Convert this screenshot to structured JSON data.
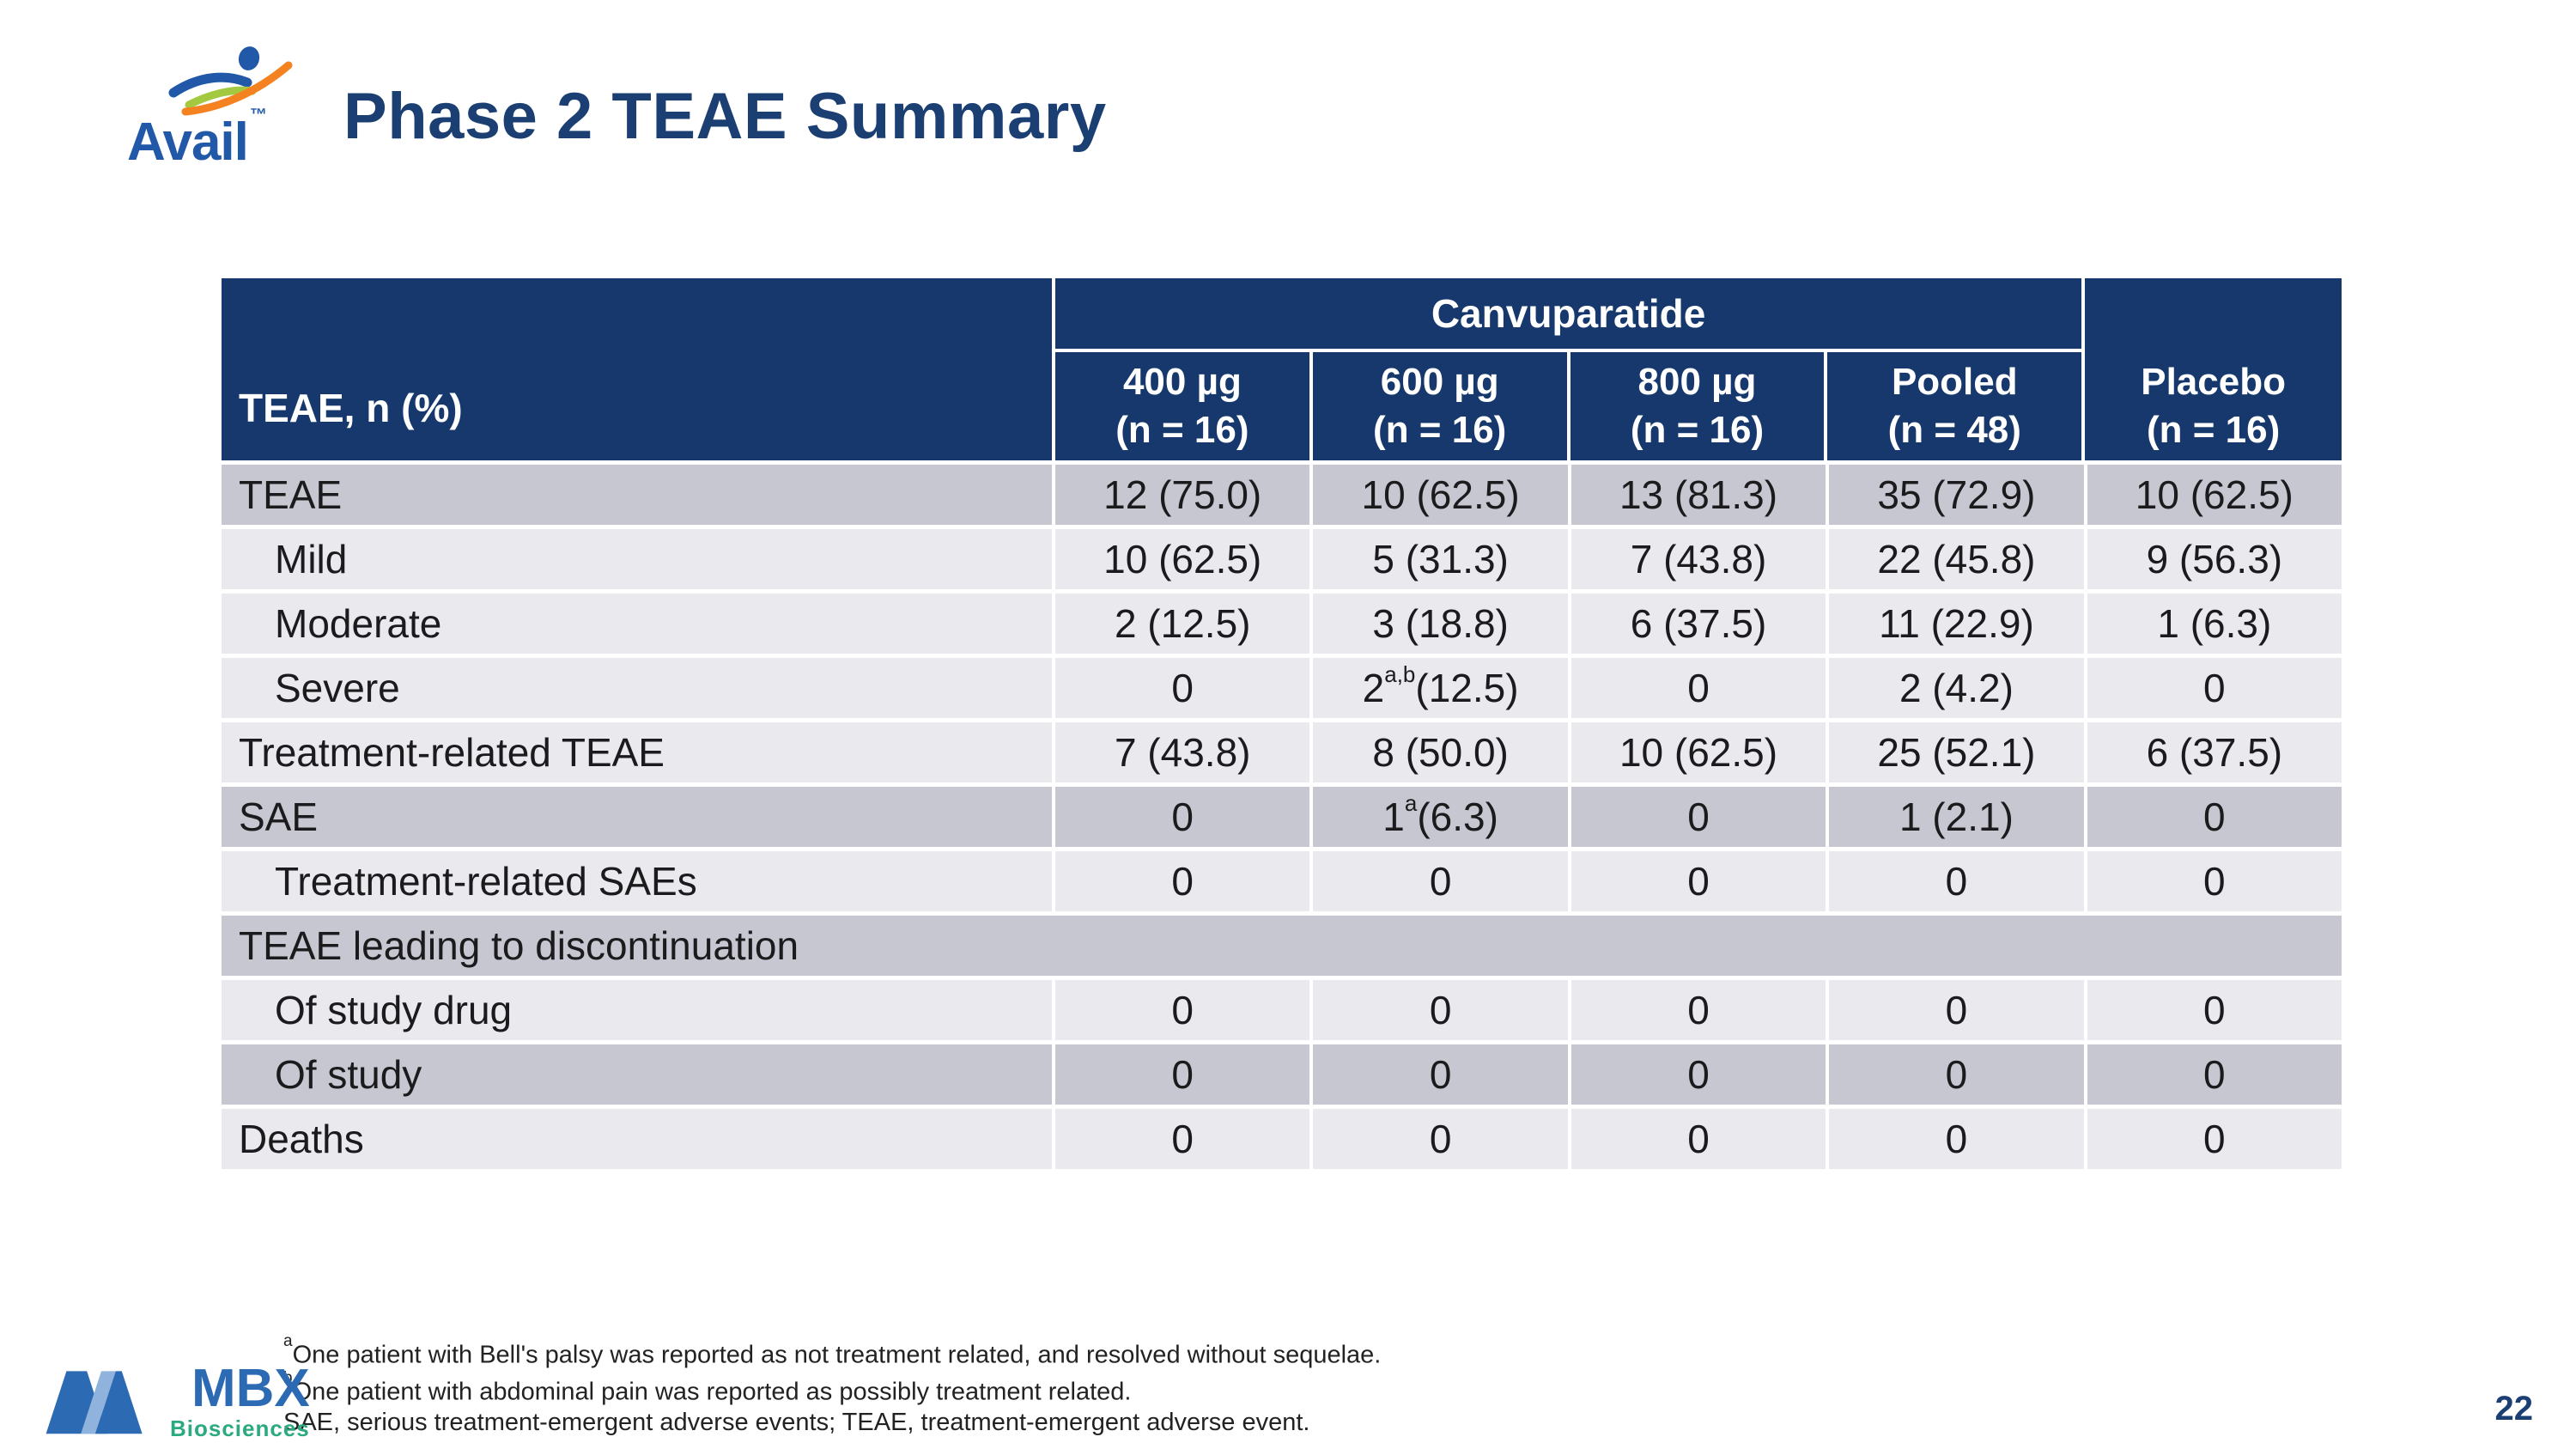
{
  "slide": {
    "brand": "Avail",
    "brand_tm": "™",
    "title": "Phase 2 TEAE Summary",
    "page_number": "22"
  },
  "table": {
    "group_header": "Canvuparatide",
    "row_header": "TEAE, n (%)",
    "columns": [
      {
        "label": "400 µg",
        "sub": "(n = 16)"
      },
      {
        "label": "600 µg",
        "sub": "(n = 16)"
      },
      {
        "label": "800 µg",
        "sub": "(n = 16)"
      },
      {
        "label": "Pooled",
        "sub": "(n = 48)"
      },
      {
        "label": "Placebo",
        "sub": "(n = 16)"
      }
    ],
    "rows": [
      {
        "label": "TEAE",
        "indent": false,
        "shade": "dark",
        "span": false,
        "values": [
          "12 (75.0)",
          "10 (62.5)",
          "13 (81.3)",
          "35 (72.9)",
          "10 (62.5)"
        ]
      },
      {
        "label": "Mild",
        "indent": true,
        "shade": "light",
        "span": false,
        "values": [
          "10 (62.5)",
          "5 (31.3)",
          "7 (43.8)",
          "22 (45.8)",
          "9 (56.3)"
        ]
      },
      {
        "label": "Moderate",
        "indent": true,
        "shade": "light",
        "span": false,
        "values": [
          "2 (12.5)",
          "3 (18.8)",
          "6 (37.5)",
          "11 (22.9)",
          "1 (6.3)"
        ]
      },
      {
        "label": "Severe",
        "indent": true,
        "shade": "light",
        "span": false,
        "values": [
          "0",
          "2{a,b} (12.5)",
          "0",
          "2 (4.2)",
          "0"
        ]
      },
      {
        "label": "Treatment-related TEAE",
        "indent": false,
        "shade": "light",
        "span": false,
        "values": [
          "7 (43.8)",
          "8 (50.0)",
          "10 (62.5)",
          "25 (52.1)",
          "6 (37.5)"
        ]
      },
      {
        "label": "SAE",
        "indent": false,
        "shade": "dark",
        "span": false,
        "values": [
          "0",
          "1{a} (6.3)",
          "0",
          "1 (2.1)",
          "0"
        ]
      },
      {
        "label": "Treatment-related SAEs",
        "indent": true,
        "shade": "light",
        "span": false,
        "values": [
          "0",
          "0",
          "0",
          "0",
          "0"
        ]
      },
      {
        "label": "TEAE leading to discontinuation",
        "indent": false,
        "shade": "dark",
        "span": true,
        "values": []
      },
      {
        "label": "Of study drug",
        "indent": true,
        "shade": "light",
        "span": false,
        "values": [
          "0",
          "0",
          "0",
          "0",
          "0"
        ]
      },
      {
        "label": "Of study",
        "indent": true,
        "shade": "dark",
        "span": false,
        "values": [
          "0",
          "0",
          "0",
          "0",
          "0"
        ]
      },
      {
        "label": "Deaths",
        "indent": false,
        "shade": "light",
        "span": false,
        "values": [
          "0",
          "0",
          "0",
          "0",
          "0"
        ]
      }
    ]
  },
  "footnotes": [
    {
      "sup": "a",
      "text": "One patient with Bell's palsy was reported as not treatment related, and resolved without sequelae."
    },
    {
      "sup": "b",
      "text": "One patient with abdominal pain was reported as possibly treatment related."
    },
    {
      "sup": "",
      "text": "SAE, serious treatment-emergent adverse events; TEAE, treatment-emergent adverse event."
    }
  ],
  "footer_logo": {
    "brand": "MBX",
    "sub": "Biosciences"
  },
  "colors": {
    "navy": "#16386C",
    "title": "#1C3F73",
    "row_dark": "#C7C7D1",
    "row_light": "#E9E9EE",
    "body_text": "#1B1B1D",
    "foot_text": "#222222",
    "avail_blue": "#2158A8",
    "avail_green": "#A3C940",
    "avail_orange": "#F58220",
    "mbx_blue": "#2C6BB3",
    "mbx_light": "#8FB3DC",
    "mbx_teal": "#2BAA80"
  }
}
